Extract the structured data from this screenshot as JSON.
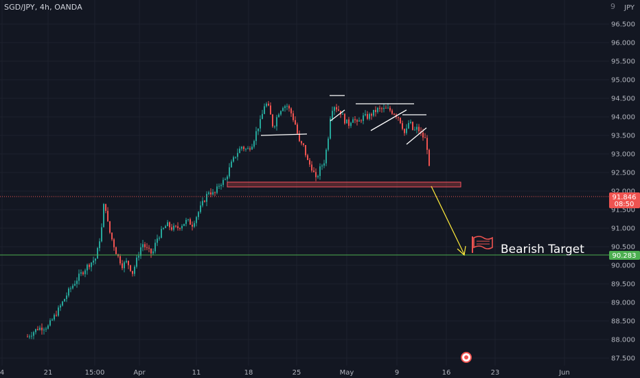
{
  "header": {
    "symbol": "SGD/JPY, 4h, OANDA",
    "currency": "JPY",
    "settings_glyph": "9"
  },
  "colors": {
    "background": "#131722",
    "up": "#26a69a",
    "down": "#ef5350",
    "grid": "#1e222d",
    "target_line": "#4caf50",
    "arrow": "#ffeb3b",
    "zone_border": "#f7525f",
    "trendlines": "#ffffff"
  },
  "chart_data": {
    "type": "candlestick",
    "symbol": "SGD/JPY",
    "timeframe": "4h",
    "source": "OANDA",
    "x_ticks": [
      "4",
      "21",
      "15:00",
      "Apr",
      "11",
      "18",
      "25",
      "May",
      "9",
      "16",
      "23",
      "Jun"
    ],
    "y_ticks": [
      "96.500",
      "96.000",
      "95.500",
      "95.000",
      "94.500",
      "94.000",
      "93.500",
      "93.000",
      "92.500",
      "92.000",
      "91.500",
      "91.000",
      "90.500",
      "90.000",
      "89.500",
      "89.000",
      "88.500",
      "88.000",
      "87.500"
    ],
    "ylim": [
      87.3,
      97.0
    ],
    "grid": true,
    "price_path": [
      [
        0,
        87.5
      ],
      [
        15,
        87.75
      ],
      [
        25,
        88.0
      ],
      [
        38,
        88.05
      ],
      [
        55,
        88.3
      ],
      [
        70,
        88.35
      ],
      [
        85,
        88.8
      ],
      [
        100,
        89.3
      ],
      [
        115,
        89.7
      ],
      [
        128,
        90.0
      ],
      [
        140,
        90.2
      ],
      [
        148,
        91.0
      ],
      [
        152,
        91.8
      ],
      [
        158,
        91.0
      ],
      [
        163,
        90.7
      ],
      [
        170,
        90.3
      ],
      [
        178,
        90.0
      ],
      [
        185,
        90.1
      ],
      [
        193,
        89.8
      ],
      [
        200,
        90.2
      ],
      [
        207,
        90.6
      ],
      [
        215,
        90.4
      ],
      [
        222,
        90.3
      ],
      [
        228,
        90.7
      ],
      [
        235,
        90.9
      ],
      [
        243,
        91.1
      ],
      [
        250,
        91.0
      ],
      [
        258,
        91.0
      ],
      [
        265,
        91.1
      ],
      [
        272,
        91.2
      ],
      [
        280,
        91.1
      ],
      [
        288,
        91.4
      ],
      [
        296,
        91.7
      ],
      [
        304,
        92.0
      ],
      [
        312,
        91.9
      ],
      [
        320,
        92.2
      ],
      [
        328,
        92.3
      ],
      [
        336,
        92.7
      ],
      [
        344,
        93.0
      ],
      [
        352,
        93.2
      ],
      [
        360,
        93.1
      ],
      [
        368,
        93.3
      ],
      [
        375,
        93.7
      ],
      [
        380,
        93.9
      ],
      [
        386,
        94.4
      ],
      [
        392,
        94.2
      ],
      [
        398,
        93.7
      ],
      [
        405,
        94.1
      ],
      [
        412,
        94.3
      ],
      [
        418,
        94.3
      ],
      [
        424,
        94.1
      ],
      [
        430,
        93.8
      ],
      [
        436,
        93.3
      ],
      [
        442,
        93.2
      ],
      [
        448,
        92.8
      ],
      [
        455,
        92.6
      ],
      [
        460,
        92.3
      ],
      [
        466,
        92.6
      ],
      [
        472,
        92.8
      ],
      [
        477,
        93.3
      ],
      [
        482,
        94.2
      ],
      [
        487,
        94.3
      ],
      [
        492,
        94.2
      ],
      [
        497,
        94.1
      ],
      [
        502,
        93.9
      ],
      [
        508,
        93.8
      ],
      [
        514,
        94.0
      ],
      [
        520,
        93.8
      ],
      [
        528,
        94.0
      ],
      [
        536,
        94.0
      ],
      [
        543,
        94.1
      ],
      [
        550,
        94.2
      ],
      [
        558,
        94.2
      ],
      [
        566,
        94.2
      ],
      [
        574,
        94.1
      ],
      [
        580,
        94.0
      ],
      [
        585,
        93.8
      ],
      [
        590,
        93.5
      ],
      [
        596,
        93.9
      ],
      [
        602,
        93.6
      ],
      [
        608,
        93.7
      ],
      [
        614,
        93.5
      ],
      [
        619,
        93.4
      ],
      [
        623,
        93.1
      ],
      [
        625,
        92.6
      ],
      [
        626,
        92.1
      ],
      [
        627,
        91.85
      ]
    ],
    "last_price": "91.846",
    "countdown": "08:50",
    "target_price": "90.283",
    "support_zone": [
      92.1,
      92.25
    ],
    "annotations": [
      "Bearish Target"
    ]
  },
  "annotation": {
    "target_label": "Bearish Target"
  }
}
